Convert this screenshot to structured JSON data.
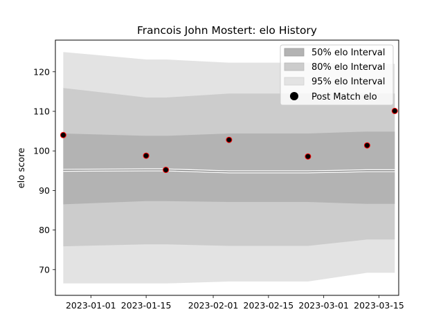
{
  "chart_data": {
    "type": "area",
    "title": "Francois John Mostert: elo History",
    "xlabel": "",
    "ylabel": "elo score",
    "xlim": [
      "2022-12-23",
      "2023-03-20"
    ],
    "ylim": [
      63.5,
      128
    ],
    "x_ticks": [
      "2023-01-01",
      "2023-01-15",
      "2023-02-01",
      "2023-02-15",
      "2023-03-01",
      "2023-03-15"
    ],
    "y_ticks": [
      70,
      80,
      90,
      100,
      110,
      120
    ],
    "grid": false,
    "legend_position": "top-right",
    "dates": [
      "2022-12-25",
      "2023-01-15",
      "2023-01-20",
      "2023-02-05",
      "2023-02-25",
      "2023-03-12",
      "2023-03-19"
    ],
    "mean": [
      95.1,
      95.2,
      95.2,
      94.7,
      94.7,
      95.0,
      95.0
    ],
    "intervals": [
      {
        "name": "50% elo Interval",
        "color": "#b3b3b3",
        "lower": [
          86.5,
          87.3,
          87.3,
          87.1,
          87.1,
          86.6,
          86.6
        ],
        "upper": [
          104.4,
          103.8,
          103.8,
          104.4,
          104.4,
          104.9,
          104.9
        ]
      },
      {
        "name": "80% elo Interval",
        "color": "#cccccc",
        "lower": [
          75.9,
          76.4,
          76.4,
          76.0,
          76.0,
          77.6,
          77.6
        ],
        "upper": [
          115.9,
          113.5,
          113.5,
          114.5,
          114.5,
          114.5,
          114.5
        ]
      },
      {
        "name": "95% elo Interval",
        "color": "#e3e3e3",
        "lower": [
          66.5,
          66.5,
          66.5,
          67.0,
          67.0,
          69.2,
          69.2
        ],
        "upper": [
          125.0,
          123.1,
          123.1,
          122.3,
          122.3,
          122.0,
          122.0
        ]
      }
    ],
    "points": {
      "name": "Post Match elo",
      "dates": [
        "2022-12-25",
        "2023-01-15",
        "2023-01-20",
        "2023-02-05",
        "2023-02-25",
        "2023-03-12",
        "2023-03-19"
      ],
      "values": [
        104.0,
        98.8,
        95.2,
        102.8,
        98.6,
        101.4,
        110.1
      ]
    },
    "colors": {
      "mean_line": "#808080",
      "point_fill": "#000000",
      "point_edge": "#ff0000"
    }
  }
}
